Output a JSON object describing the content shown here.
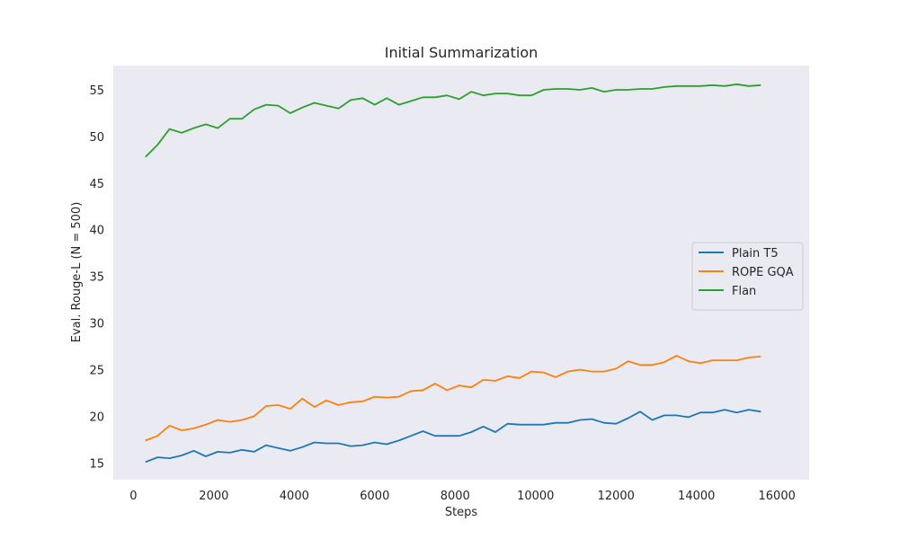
{
  "chart_data": {
    "type": "line",
    "title": "Initial Summarization",
    "xlabel": "Steps",
    "ylabel": "Eval. Rouge-L (N = 500)",
    "xlim": [
      -500,
      16800
    ],
    "ylim": [
      13.2,
      57.6
    ],
    "xticks": [
      0,
      2000,
      4000,
      6000,
      8000,
      10000,
      12000,
      14000,
      16000
    ],
    "xtick_labels": [
      "0",
      "2000",
      "4000",
      "6000",
      "8000",
      "10000",
      "12000",
      "14000",
      "16000"
    ],
    "yticks": [
      15,
      20,
      25,
      30,
      35,
      40,
      45,
      50,
      55
    ],
    "ytick_labels": [
      "15",
      "20",
      "25",
      "30",
      "35",
      "40",
      "45",
      "50",
      "55"
    ],
    "grid": false,
    "legend_position": "center-right",
    "background": "#eaeaf2",
    "x": [
      300,
      600,
      900,
      1200,
      1500,
      1800,
      2100,
      2400,
      2700,
      3000,
      3300,
      3600,
      3900,
      4200,
      4500,
      4800,
      5100,
      5400,
      5700,
      6000,
      6300,
      6600,
      6900,
      7200,
      7500,
      7800,
      8100,
      8400,
      8700,
      9000,
      9300,
      9600,
      9900,
      10200,
      10500,
      10800,
      11100,
      11400,
      11700,
      12000,
      12300,
      12600,
      12900,
      13200,
      13500,
      13800,
      14100,
      14400,
      14700,
      15000,
      15300,
      15600
    ],
    "series": [
      {
        "name": "Plain T5",
        "color": "#1f77b4",
        "values": [
          15.1,
          15.6,
          15.5,
          15.8,
          16.3,
          15.7,
          16.2,
          16.1,
          16.4,
          16.2,
          16.9,
          16.6,
          16.3,
          16.7,
          17.2,
          17.1,
          17.1,
          16.8,
          16.9,
          17.2,
          17.0,
          17.4,
          17.9,
          18.4,
          17.9,
          17.9,
          17.9,
          18.3,
          18.9,
          18.3,
          19.2,
          19.1,
          19.1,
          19.1,
          19.3,
          19.3,
          19.6,
          19.7,
          19.3,
          19.2,
          19.8,
          20.5,
          19.6,
          20.1,
          20.1,
          19.9,
          20.4,
          20.4,
          20.7,
          20.4,
          20.7,
          20.5
        ]
      },
      {
        "name": "ROPE GQA",
        "color": "#ff7f0e",
        "values": [
          17.4,
          17.9,
          19.0,
          18.5,
          18.7,
          19.1,
          19.6,
          19.4,
          19.6,
          20.0,
          21.1,
          21.2,
          20.8,
          21.9,
          21.0,
          21.7,
          21.2,
          21.5,
          21.6,
          22.1,
          22.0,
          22.1,
          22.7,
          22.8,
          23.5,
          22.8,
          23.3,
          23.1,
          23.9,
          23.8,
          24.3,
          24.1,
          24.8,
          24.7,
          24.2,
          24.8,
          25.0,
          24.8,
          24.8,
          25.1,
          25.9,
          25.5,
          25.5,
          25.8,
          26.5,
          25.9,
          25.7,
          26.0,
          26.0,
          26.0,
          26.3,
          26.4
        ]
      },
      {
        "name": "Flan",
        "color": "#2ca02c",
        "values": [
          47.8,
          49.1,
          50.8,
          50.4,
          50.9,
          51.3,
          50.9,
          51.9,
          51.9,
          52.9,
          53.4,
          53.3,
          52.5,
          53.1,
          53.6,
          53.3,
          53.0,
          53.9,
          54.1,
          53.4,
          54.1,
          53.4,
          53.8,
          54.2,
          54.2,
          54.4,
          54.0,
          54.8,
          54.4,
          54.6,
          54.6,
          54.4,
          54.4,
          55.0,
          55.1,
          55.1,
          55.0,
          55.2,
          54.8,
          55.0,
          55.0,
          55.1,
          55.1,
          55.3,
          55.4,
          55.4,
          55.4,
          55.5,
          55.4,
          55.6,
          55.4,
          55.5
        ]
      }
    ]
  }
}
